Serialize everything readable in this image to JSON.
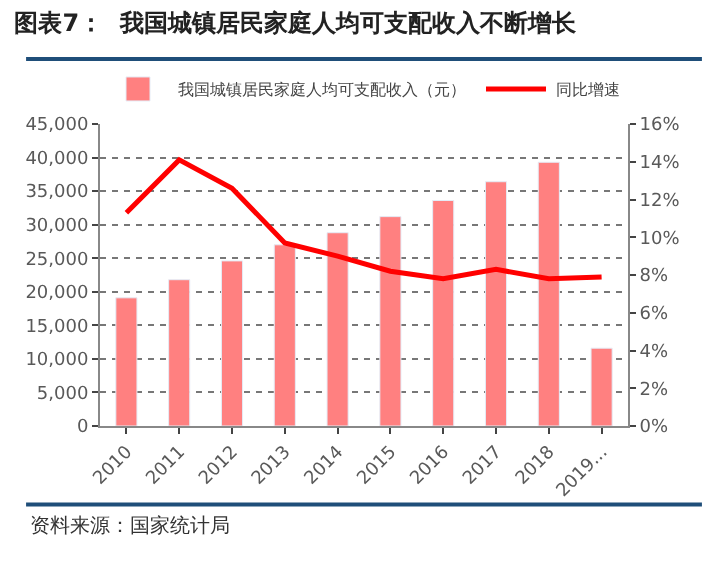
{
  "chart_data": {
    "type": "bar",
    "title": "图表7：  我国城镇居民家庭人均可支配收入不断增长",
    "categories": [
      "2010",
      "2011",
      "2012",
      "2013",
      "2014",
      "2015",
      "2016",
      "2017",
      "2018",
      "2019..."
    ],
    "series": [
      {
        "name": "我国城镇居民家庭人均可支配收入（元）",
        "color": "#ff8080",
        "values": [
          19100,
          21800,
          24600,
          27000,
          28800,
          31200,
          33600,
          36400,
          39300,
          11600
        ]
      },
      {
        "name": "同比增速",
        "type": "line",
        "axis": "y2",
        "color": "#ff0000",
        "values": [
          11.3,
          14.1,
          12.6,
          9.7,
          9.0,
          8.2,
          7.8,
          8.3,
          7.8,
          7.9
        ]
      }
    ],
    "ylim": [
      0,
      45000
    ],
    "yticks": [
      {
        "value": 0,
        "label": "0"
      },
      {
        "value": 5000,
        "label": "5,000"
      },
      {
        "value": 10000,
        "label": "10,000"
      },
      {
        "value": 15000,
        "label": "15,000"
      },
      {
        "value": 20000,
        "label": "20,000"
      },
      {
        "value": 25000,
        "label": "25,000"
      },
      {
        "value": 30000,
        "label": "30,000"
      },
      {
        "value": 35000,
        "label": "35,000"
      },
      {
        "value": 40000,
        "label": "40,000"
      },
      {
        "value": 45000,
        "label": "45,000"
      }
    ],
    "y2lim": [
      0,
      16
    ],
    "y2ticks": [
      {
        "value": 0,
        "label": "0%"
      },
      {
        "value": 2,
        "label": "2%"
      },
      {
        "value": 4,
        "label": "4%"
      },
      {
        "value": 6,
        "label": "6%"
      },
      {
        "value": 8,
        "label": "8%"
      },
      {
        "value": 10,
        "label": "10%"
      },
      {
        "value": 12,
        "label": "12%"
      },
      {
        "value": 14,
        "label": "14%"
      },
      {
        "value": 16,
        "label": "16%"
      }
    ],
    "grid": "y",
    "legend": "top",
    "marker": "none",
    "line_style": "solid",
    "annotations": [
      "资料来源：国家统计局"
    ]
  }
}
